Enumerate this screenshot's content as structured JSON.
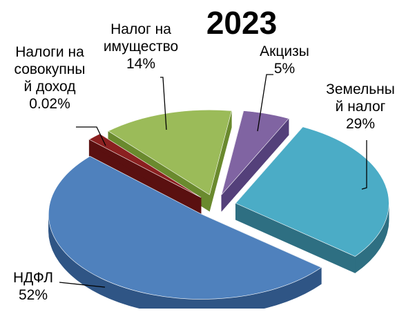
{
  "chart_data": {
    "type": "pie",
    "title": "2023",
    "series": [
      {
        "name": "",
        "slices": [
          {
            "label": "Земельный налог",
            "value": 29,
            "value_label": "29%",
            "color": "#4bacc6",
            "side_color": "#2e6f82",
            "label_lines": [
              "Земельны",
              "й налог",
              "29%"
            ]
          },
          {
            "label": "НДФЛ",
            "value": 52,
            "value_label": "52%",
            "color": "#4f81bd",
            "side_color": "#2f5585",
            "label_lines": [
              "НДФЛ",
              "52%"
            ]
          },
          {
            "label": "Налоги на совокупный доход",
            "value": 0.02,
            "value_label": "0.02%",
            "color": "#8b2020",
            "side_color": "#5a1010",
            "label_lines": [
              "Налоги на",
              "совокупны",
              "й доход",
              "0.02%"
            ]
          },
          {
            "label": "Налог на имущество",
            "value": 14,
            "value_label": "14%",
            "color": "#9bbb59",
            "side_color": "#6a8a2e",
            "label_lines": [
              "Налог на",
              "имущество",
              "14%"
            ]
          },
          {
            "label": "Акцизы",
            "value": 5,
            "value_label": "5%",
            "color": "#8064a2",
            "side_color": "#54407a",
            "label_lines": [
              "Акцизы",
              "5%"
            ]
          }
        ]
      }
    ],
    "legend": "none",
    "grid": false
  }
}
